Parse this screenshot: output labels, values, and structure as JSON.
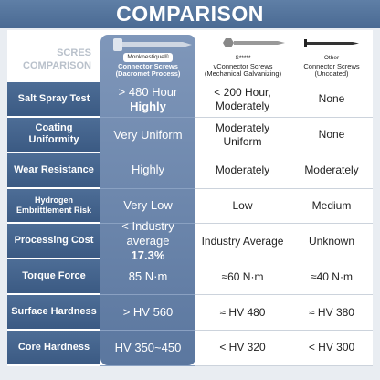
{
  "header": {
    "title": "COMPARISON"
  },
  "table": {
    "corner": [
      "SCRES",
      "COMPARISON"
    ],
    "columns": [
      {
        "badge": "Monknestique®",
        "name": "Connector Screws",
        "sub": "(Dacromet Process)"
      },
      {
        "badge": "S*****",
        "name": "vConnector Screws",
        "sub": "(Mechanical Galvanizing)"
      },
      {
        "badge": "Other",
        "name": "Connector Screws",
        "sub": "(Uncoated)"
      }
    ],
    "rows": [
      {
        "label": "Salt Spray Test",
        "cells": [
          [
            "> 480 Hour",
            "Highly"
          ],
          [
            "< 200 Hour,",
            "Moderately"
          ],
          [
            "None"
          ]
        ]
      },
      {
        "label": "Coating Uniformity",
        "cells": [
          [
            "Very Uniform"
          ],
          [
            "Moderately",
            "Uniform"
          ],
          [
            "None"
          ]
        ]
      },
      {
        "label": "Wear Resistance",
        "cells": [
          [
            "Highly"
          ],
          [
            "Moderately"
          ],
          [
            "Moderately"
          ]
        ]
      },
      {
        "label": "Hydrogen Embrittlement Risk",
        "cells": [
          [
            "Very Low"
          ],
          [
            "Low"
          ],
          [
            "Medium"
          ]
        ]
      },
      {
        "label": "Processing Cost",
        "cells": [
          [
            "< Industry average",
            "17.3%"
          ],
          [
            "Industry Average"
          ],
          [
            "Unknown"
          ]
        ]
      },
      {
        "label": "Torque Force",
        "cells": [
          [
            "85 N·m"
          ],
          [
            "≈60 N·m"
          ],
          [
            "≈40 N·m"
          ]
        ]
      },
      {
        "label": "Surface Hardness",
        "cells": [
          [
            "> HV 560"
          ],
          [
            "≈ HV 480"
          ],
          [
            "≈ HV 380"
          ]
        ]
      },
      {
        "label": "Core Hardness",
        "cells": [
          [
            "HV 350~450"
          ],
          [
            "< HV 320"
          ],
          [
            "< HV 300"
          ]
        ]
      }
    ]
  }
}
